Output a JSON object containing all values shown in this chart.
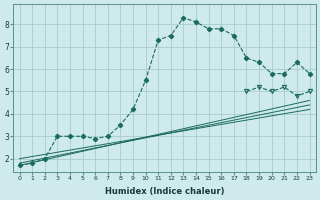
{
  "xlabel": "Humidex (Indice chaleur)",
  "bg_color": "#ceeaea",
  "line_color": "#1a6b5a",
  "grid_color": "#a8cccc",
  "x_ticks": [
    0,
    1,
    2,
    3,
    4,
    5,
    6,
    7,
    8,
    9,
    10,
    11,
    12,
    13,
    14,
    15,
    16,
    17,
    18,
    19,
    20,
    21,
    22,
    23
  ],
  "y_ticks": [
    2,
    3,
    4,
    5,
    6,
    7,
    8
  ],
  "ylim": [
    1.4,
    8.9
  ],
  "xlim": [
    -0.5,
    23.5
  ],
  "main_curve": {
    "x": [
      0,
      1,
      2,
      3,
      4,
      5,
      6,
      7,
      8,
      9,
      10,
      11,
      12,
      13,
      14,
      15,
      16,
      17,
      18,
      19,
      20,
      21,
      22,
      23
    ],
    "y": [
      1.7,
      1.8,
      2.0,
      3.0,
      3.0,
      3.0,
      2.9,
      3.0,
      3.5,
      4.2,
      5.5,
      7.3,
      7.5,
      8.3,
      8.1,
      7.8,
      7.8,
      7.5,
      6.5,
      6.3,
      5.8,
      5.8,
      6.3,
      5.8
    ]
  },
  "right_curve": {
    "x": [
      18,
      19,
      20,
      21,
      22,
      23
    ],
    "y": [
      5.0,
      5.2,
      5.0,
      5.2,
      4.8,
      5.0
    ]
  },
  "straight_lines": [
    {
      "x0": 0,
      "y0": 1.7,
      "x1": 23,
      "y1": 4.6
    },
    {
      "x0": 0,
      "y0": 1.8,
      "x1": 23,
      "y1": 4.4
    },
    {
      "x0": 0,
      "y0": 2.0,
      "x1": 23,
      "y1": 4.2
    }
  ]
}
